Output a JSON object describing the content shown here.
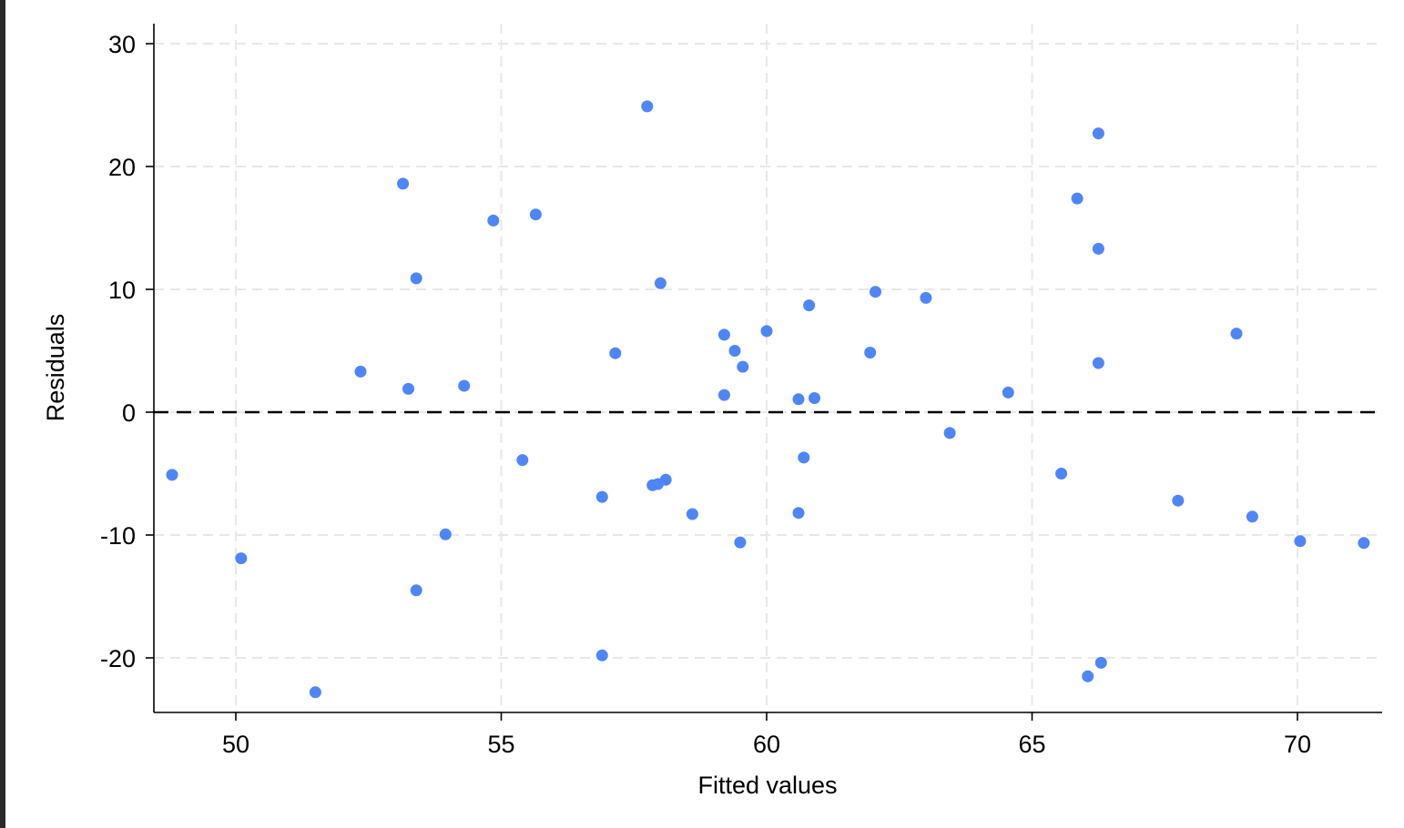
{
  "colors": {
    "edge": "#2a2a2a",
    "marker": "#4f86f7",
    "grid": "#e8e8e8",
    "axis": "#000000",
    "reference_line": "#000000",
    "background": "#ffffff"
  },
  "chart_data": {
    "type": "scatter",
    "title": "",
    "xlabel": "Fitted values",
    "ylabel": "Residuals",
    "xlim": [
      48.45,
      71.6
    ],
    "ylim": [
      -24.6,
      31.5
    ],
    "xticks": [
      50,
      55,
      60,
      65,
      70
    ],
    "yticks": [
      -20,
      -10,
      0,
      10,
      20,
      30
    ],
    "xtick_labels": [
      "50",
      "55",
      "60",
      "65",
      "70"
    ],
    "ytick_labels": [
      "-20",
      "-10",
      "0",
      "10",
      "20",
      "30"
    ],
    "grid": true,
    "grid_style": "dashed",
    "reference_line": {
      "y": 0,
      "style": "dashed"
    },
    "legend": "none",
    "series": [
      {
        "marker": "circle",
        "points": [
          {
            "x": 48.8,
            "y": -5.1
          },
          {
            "x": 50.1,
            "y": -11.9
          },
          {
            "x": 51.5,
            "y": -22.8
          },
          {
            "x": 52.35,
            "y": 3.3
          },
          {
            "x": 53.15,
            "y": 18.6
          },
          {
            "x": 53.25,
            "y": 1.9
          },
          {
            "x": 53.4,
            "y": 10.9
          },
          {
            "x": 53.4,
            "y": -14.5
          },
          {
            "x": 53.95,
            "y": -9.95
          },
          {
            "x": 54.3,
            "y": 2.15
          },
          {
            "x": 54.85,
            "y": 15.6
          },
          {
            "x": 55.4,
            "y": -3.9
          },
          {
            "x": 55.65,
            "y": 16.1
          },
          {
            "x": 56.9,
            "y": -6.9
          },
          {
            "x": 56.9,
            "y": -19.8
          },
          {
            "x": 57.15,
            "y": 4.8
          },
          {
            "x": 57.75,
            "y": 24.9
          },
          {
            "x": 57.85,
            "y": -5.95
          },
          {
            "x": 57.95,
            "y": -5.85
          },
          {
            "x": 58.0,
            "y": 10.5
          },
          {
            "x": 58.1,
            "y": -5.5
          },
          {
            "x": 58.6,
            "y": -8.3
          },
          {
            "x": 59.2,
            "y": 6.3
          },
          {
            "x": 59.2,
            "y": 1.4
          },
          {
            "x": 59.4,
            "y": 5.0
          },
          {
            "x": 59.5,
            "y": -10.6
          },
          {
            "x": 59.55,
            "y": 3.7
          },
          {
            "x": 60.0,
            "y": 6.6
          },
          {
            "x": 60.6,
            "y": 1.05
          },
          {
            "x": 60.6,
            "y": -8.2
          },
          {
            "x": 60.7,
            "y": -3.7
          },
          {
            "x": 60.8,
            "y": 8.7
          },
          {
            "x": 60.9,
            "y": 1.15
          },
          {
            "x": 61.95,
            "y": 4.85
          },
          {
            "x": 62.05,
            "y": 9.8
          },
          {
            "x": 63.0,
            "y": 9.3
          },
          {
            "x": 63.45,
            "y": -1.7
          },
          {
            "x": 64.55,
            "y": 1.6
          },
          {
            "x": 65.55,
            "y": -5.0
          },
          {
            "x": 65.85,
            "y": 17.4
          },
          {
            "x": 66.05,
            "y": -21.5
          },
          {
            "x": 66.25,
            "y": 22.7
          },
          {
            "x": 66.25,
            "y": 13.3
          },
          {
            "x": 66.25,
            "y": 4.0
          },
          {
            "x": 66.3,
            "y": -20.4
          },
          {
            "x": 67.75,
            "y": -7.2
          },
          {
            "x": 68.85,
            "y": 6.4
          },
          {
            "x": 69.15,
            "y": -8.5
          },
          {
            "x": 70.05,
            "y": -10.5
          },
          {
            "x": 71.25,
            "y": -10.65
          }
        ]
      }
    ]
  }
}
